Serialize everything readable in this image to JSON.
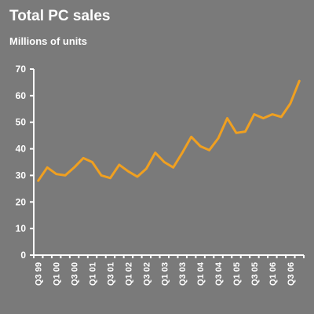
{
  "chart_data": {
    "type": "line",
    "title": "Total PC sales",
    "subtitle": "Millions of units",
    "xlabel": "",
    "ylabel": "",
    "ylim": [
      0,
      70
    ],
    "yticks": [
      0,
      10,
      20,
      30,
      40,
      50,
      60,
      70
    ],
    "grid": false,
    "x": [
      "Q3 99",
      "Q4 99",
      "Q1 00",
      "Q2 00",
      "Q3 00",
      "Q4 00",
      "Q1 01",
      "Q2 01",
      "Q3 01",
      "Q4 01",
      "Q1 02",
      "Q2 02",
      "Q3 02",
      "Q4 02",
      "Q1 03",
      "Q2 03",
      "Q3 03",
      "Q4 03",
      "Q1 04",
      "Q2 04",
      "Q3 04",
      "Q4 04",
      "Q1 05",
      "Q2 05",
      "Q3 05",
      "Q4 05",
      "Q1 06",
      "Q2 06",
      "Q3 06",
      "Q4 06"
    ],
    "x_tick_labels": [
      "Q3 99",
      "",
      "Q1 00",
      "",
      "Q3 00",
      "",
      "Q1 01",
      "",
      "Q3 01",
      "",
      "Q1 02",
      "",
      "Q3 02",
      "",
      "Q1 03",
      "",
      "Q3 03",
      "",
      "Q1 04",
      "",
      "Q3 04",
      "",
      "Q1 05",
      "",
      "Q3 05",
      "",
      "Q1 06",
      "",
      "Q3 06",
      ""
    ],
    "series": [
      {
        "values": [
          28,
          33,
          30.5,
          30,
          33,
          36.5,
          35,
          30,
          29,
          34,
          31.5,
          29.5,
          32.5,
          38.5,
          35,
          33,
          38.5,
          44.5,
          41,
          39.5,
          44,
          51.5,
          46,
          46.5,
          53,
          51.5,
          53,
          52,
          57,
          65.5
        ],
        "color": "#f0a020"
      }
    ],
    "colors": {
      "background": "#7a7a7a",
      "axis": "#ffffff",
      "text": "#ffffff",
      "line": "#f0a020"
    }
  }
}
